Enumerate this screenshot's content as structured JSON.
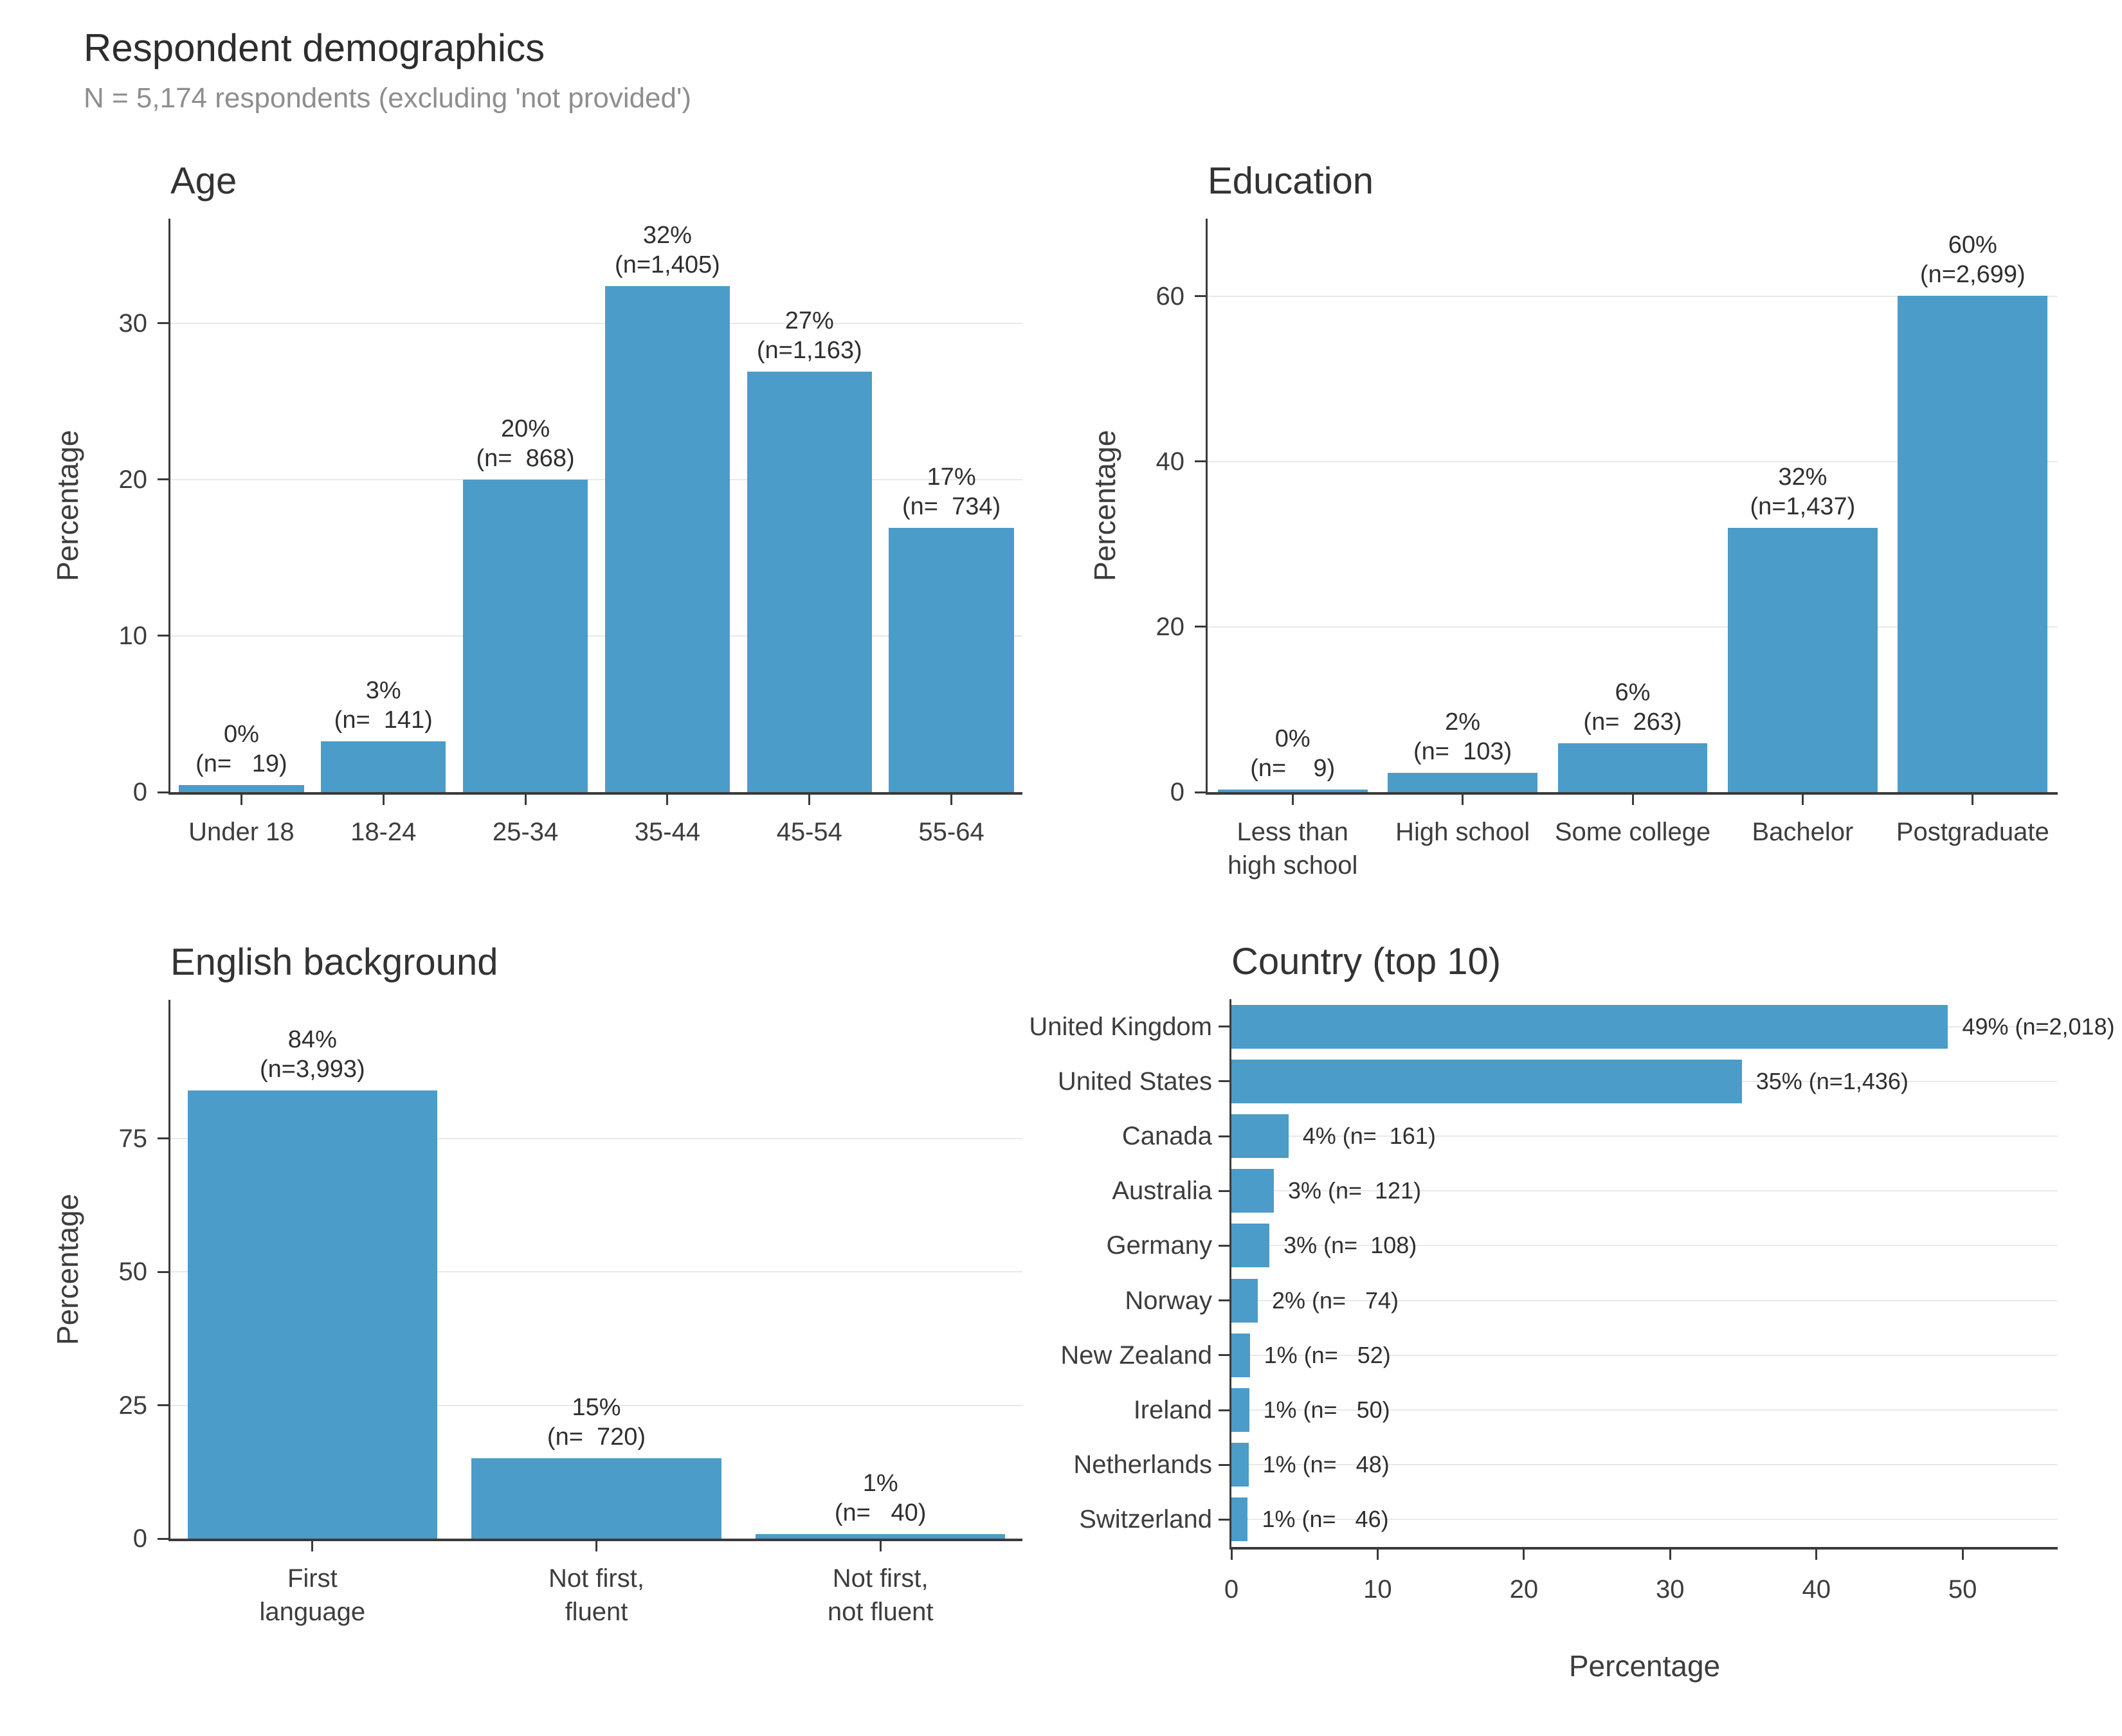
{
  "header": {
    "title": "Respondent demographics",
    "subtitle": "N = 5,174 respondents (excluding 'not provided')"
  },
  "colors": {
    "bar": "#4b9cc8",
    "grid": "#e9e9e9",
    "axis": "#3a3a3a",
    "text": "#2f2f2f",
    "muted": "#8e8e8e"
  },
  "chart_data": [
    {
      "type": "bar",
      "title": "Age",
      "ylabel": "Percentage",
      "yticks": [
        0,
        10,
        20,
        30
      ],
      "ylim": [
        0,
        36.7
      ],
      "grid": true,
      "categories": [
        "Under 18",
        "18-24",
        "25-34",
        "35-44",
        "45-54",
        "55-64"
      ],
      "values": [
        0.44,
        3.25,
        20.0,
        32.4,
        26.9,
        16.9
      ],
      "counts": [
        19,
        141,
        868,
        1405,
        1163,
        734
      ],
      "labels_pct": [
        "0%",
        "3%",
        "20%",
        "32%",
        "27%",
        "17%"
      ],
      "labels_n": [
        "(n=   19)",
        "(n=  141)",
        "(n=  868)",
        "(n=1,405)",
        "(n=1,163)",
        "(n=  734)"
      ]
    },
    {
      "type": "bar",
      "title": "Education",
      "ylabel": "Percentage",
      "yticks": [
        0,
        20,
        40,
        60
      ],
      "ylim": [
        0,
        69.4
      ],
      "grid": true,
      "categories": [
        "Less than\nhigh school",
        "High school",
        "Some college",
        "Bachelor",
        "Postgraduate"
      ],
      "values": [
        0.2,
        2.3,
        5.9,
        32.0,
        60.1
      ],
      "counts": [
        9,
        103,
        263,
        1437,
        2699
      ],
      "labels_pct": [
        "0%",
        "2%",
        "6%",
        "32%",
        "60%"
      ],
      "labels_n": [
        "(n=    9)",
        "(n=  103)",
        "(n=  263)",
        "(n=1,437)",
        "(n=2,699)"
      ]
    },
    {
      "type": "bar",
      "title": "English background",
      "ylabel": "Percentage",
      "yticks": [
        0,
        25,
        50,
        75
      ],
      "ylim": [
        0,
        101
      ],
      "grid": true,
      "categories": [
        "First\nlanguage",
        "Not first,\nfluent",
        "Not first,\nnot fluent"
      ],
      "values": [
        84.0,
        15.1,
        0.84
      ],
      "counts": [
        3993,
        720,
        40
      ],
      "labels_pct": [
        "84%",
        "15%",
        "1%"
      ],
      "labels_n": [
        "(n=3,993)",
        "(n=  720)",
        "(n=   40)"
      ]
    },
    {
      "type": "hbar",
      "title": "Country (top 10)",
      "xlabel": "Percentage",
      "xticks": [
        0,
        10,
        20,
        30,
        40,
        50
      ],
      "xlim": [
        0,
        56.5
      ],
      "grid": true,
      "categories": [
        "United Kingdom",
        "United States",
        "Canada",
        "Australia",
        "Germany",
        "Norway",
        "New Zealand",
        "Ireland",
        "Netherlands",
        "Switzerland"
      ],
      "values": [
        49.0,
        34.9,
        3.9,
        2.9,
        2.6,
        1.8,
        1.26,
        1.21,
        1.17,
        1.12
      ],
      "counts": [
        2018,
        1436,
        161,
        121,
        108,
        74,
        52,
        50,
        48,
        46
      ],
      "labels": [
        "49% (n=2,018)",
        "35% (n=1,436)",
        "4% (n=  161)",
        "3% (n=  121)",
        "3% (n=  108)",
        "2% (n=   74)",
        "1% (n=   52)",
        "1% (n=   50)",
        "1% (n=   48)",
        "1% (n=   46)"
      ]
    }
  ]
}
